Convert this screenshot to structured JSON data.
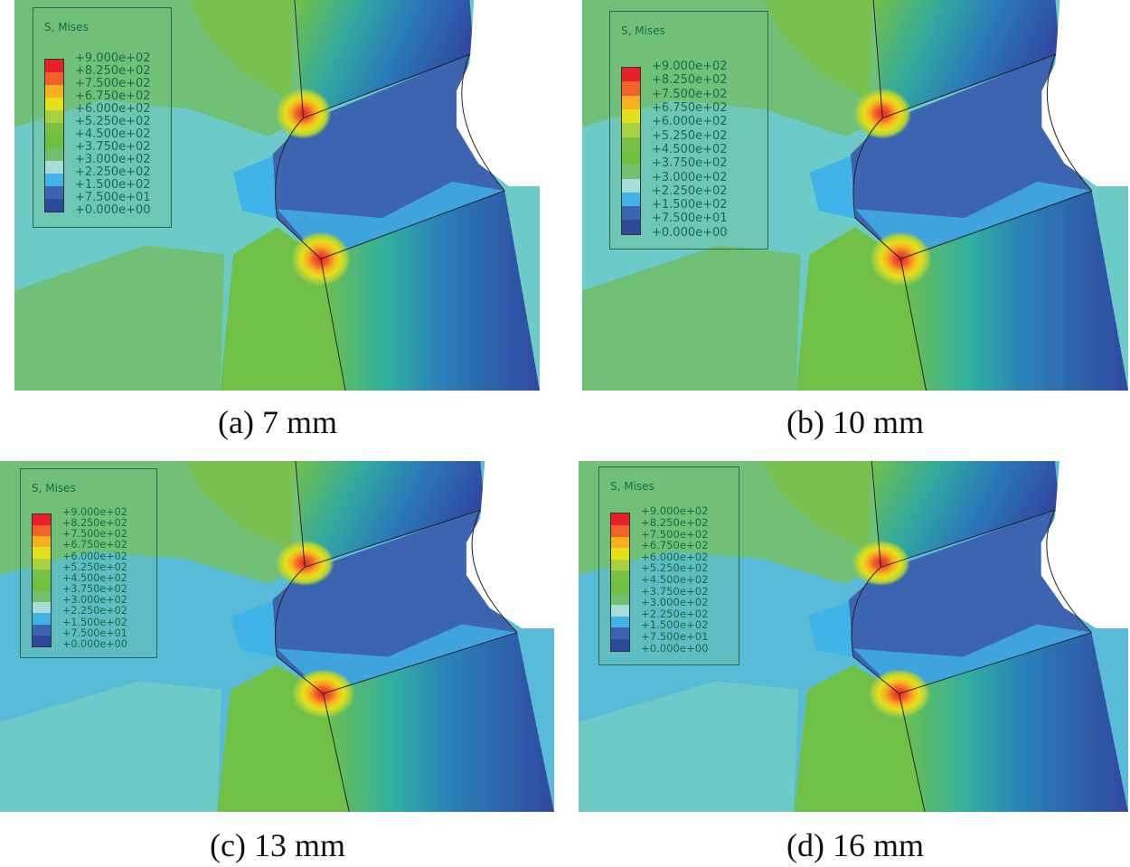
{
  "legend": {
    "title": "S, Mises",
    "labels": [
      "+9.000e+02",
      "+8.250e+02",
      "+7.500e+02",
      "+6.750e+02",
      "+6.000e+02",
      "+5.250e+02",
      "+4.500e+02",
      "+3.750e+02",
      "+3.000e+02",
      "+2.250e+02",
      "+1.500e+02",
      "+7.500e+01",
      "+0.000e+00"
    ],
    "colors": [
      "#e8202a",
      "#f0622a",
      "#f8b020",
      "#e6e01a",
      "#a8d040",
      "#78c048",
      "#70c040",
      "#70c070",
      "#a8dcd8",
      "#40b4e8",
      "#3c64b0",
      "#304898"
    ]
  },
  "panels": [
    {
      "caption": "(a) 7 mm"
    },
    {
      "caption": "(b) 10 mm"
    },
    {
      "caption": "(c) 13 mm"
    },
    {
      "caption": "(d) 16 mm"
    }
  ]
}
